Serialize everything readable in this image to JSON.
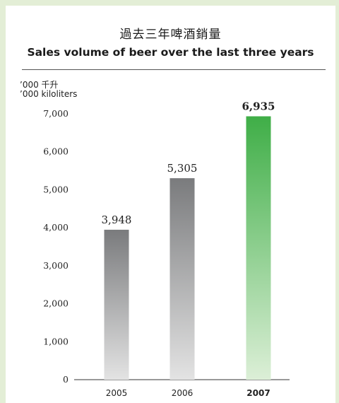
{
  "chart_data": {
    "type": "bar",
    "title": "過去三年啤酒銷量",
    "subtitle": "Sales volume of beer over the last three years",
    "unit_zh": "’000 千升",
    "unit_en": "’000 kiloliters",
    "categories": [
      "2005",
      "2006",
      "2007"
    ],
    "values": [
      3948,
      5305,
      6935
    ],
    "value_labels": [
      "3,948",
      "5,305",
      "6,935"
    ],
    "highlight_index": 2,
    "ylim": [
      0,
      7000
    ],
    "yticks": [
      0,
      1000,
      2000,
      3000,
      4000,
      5000,
      6000,
      7000
    ],
    "ytick_labels": [
      "0",
      "1,000",
      "2,000",
      "3,000",
      "4,000",
      "5,000",
      "6,000",
      "7,000"
    ],
    "grid": false,
    "colors": {
      "gray_top": "#7a7b7d",
      "gray_bottom": "#e3e3e3",
      "green_top": "#3fae47",
      "green_bottom": "#dcefd7"
    }
  }
}
